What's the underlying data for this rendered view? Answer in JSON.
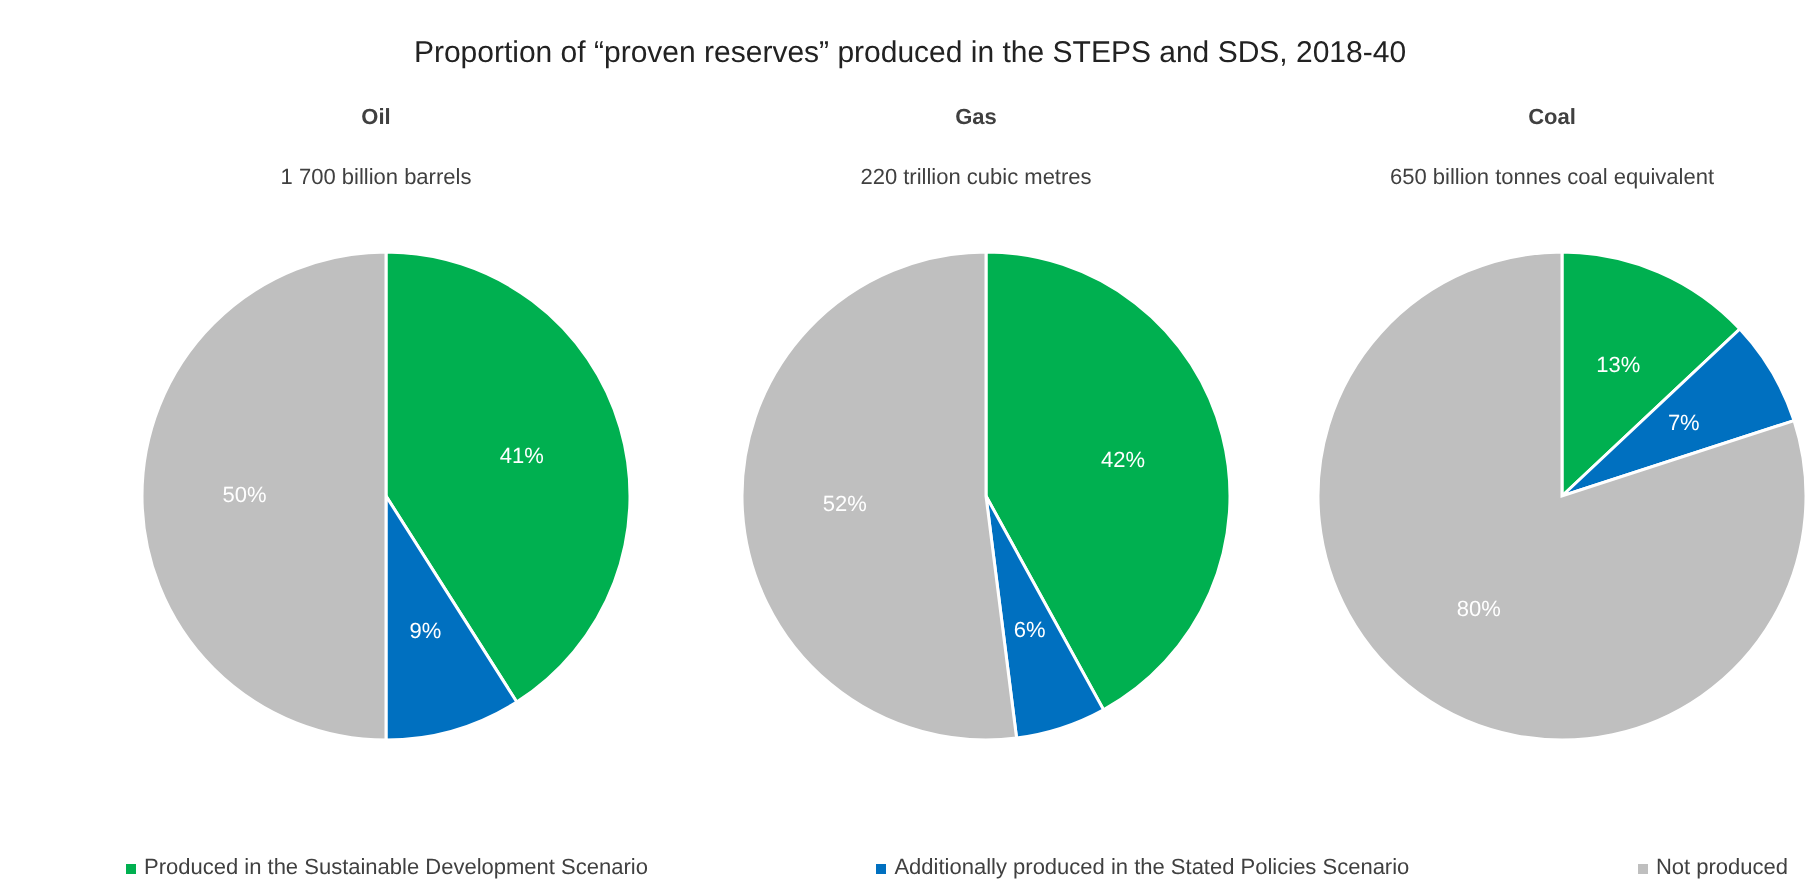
{
  "chart_data": [
    {
      "type": "pie",
      "title": "Oil",
      "subtitle": "1 700 billion barrels",
      "annotations": [
        "Proportion of “proven reserves” produced in the STEPS and SDS, 2018-40"
      ],
      "legend": "bottom",
      "categories": [
        "Produced in the Sustainable Development Scenario",
        "Additionally produced in the Stated Policies Scenario",
        "Not produced"
      ],
      "values": [
        41,
        9,
        50
      ],
      "value_labels": [
        "41%",
        "9%",
        "50%"
      ],
      "colors": [
        "#00b050",
        "#0070c0",
        "#bfbfbf"
      ]
    },
    {
      "type": "pie",
      "title": "Gas",
      "subtitle": "220 trillion cubic metres",
      "categories": [
        null,
        null,
        null
      ],
      "values": [
        42,
        6,
        52
      ],
      "value_labels": [
        "42%",
        "6%",
        "52%"
      ],
      "colors": [
        "#00b050",
        "#0070c0",
        "#bfbfbf"
      ]
    },
    {
      "type": "pie",
      "title": "Coal",
      "subtitle": "650 billion tonnes coal equivalent",
      "categories": [
        null,
        null,
        null
      ],
      "values": [
        13,
        7,
        80
      ],
      "value_labels": [
        "13%",
        "7%",
        "80%"
      ],
      "colors": [
        "#00b050",
        "#0070c0",
        "#bfbfbf"
      ]
    }
  ]
}
